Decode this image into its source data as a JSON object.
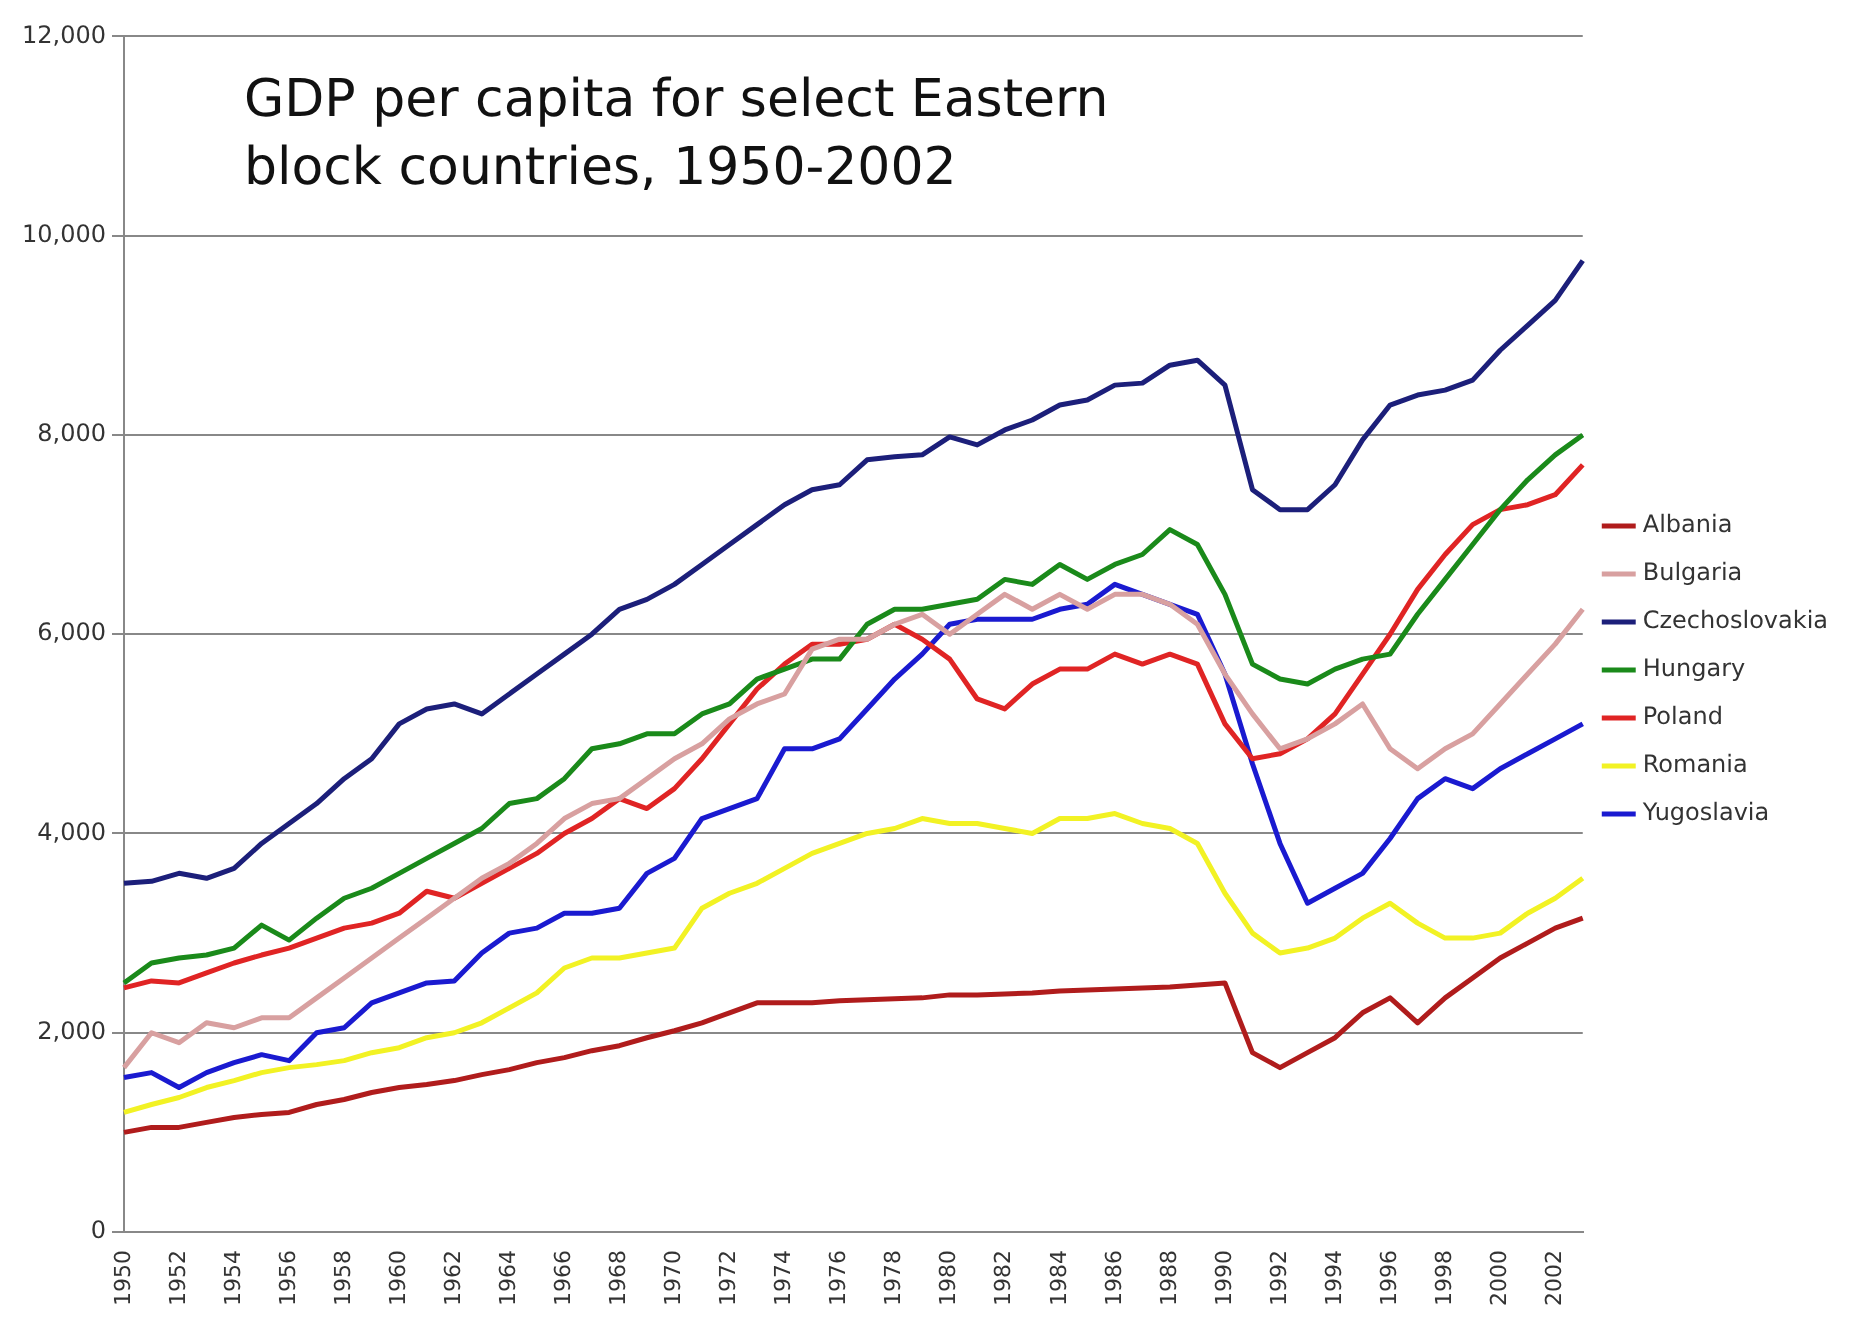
{
  "chart_data": {
    "type": "line",
    "title": "GDP per capita for select Eastern block countries, 1950-2002",
    "categories": [
      "1950",
      null,
      "1952",
      null,
      "1954",
      null,
      "1956",
      null,
      "1958",
      null,
      "1960",
      null,
      "1962",
      null,
      "1964",
      null,
      "1966",
      null,
      "1968",
      null,
      "1970",
      null,
      "1972",
      null,
      "1974",
      null,
      "1976",
      null,
      "1978",
      null,
      "1980",
      null,
      "1982",
      null,
      "1984",
      null,
      "1986",
      null,
      "1988",
      null,
      "1990",
      null,
      "1992",
      null,
      "1994",
      null,
      "1996",
      null,
      "1998",
      null,
      "2000",
      null,
      "2002",
      null
    ],
    "ylim": [
      0,
      12000
    ],
    "yticks": [
      0,
      {
        "value": 2000,
        "label": "2,000"
      },
      {
        "value": 4000,
        "label": "4,000"
      },
      {
        "value": 6000,
        "label": "6,000"
      },
      {
        "value": 8000,
        "label": "8,000"
      },
      {
        "value": 10000,
        "label": "10,000"
      },
      {
        "value": 12000,
        "label": "12,000"
      }
    ],
    "grid": "y",
    "legend": "right",
    "marker": "none",
    "line_style": "solid",
    "series": [
      {
        "name": "Albania",
        "color": "#b01c1c",
        "values": [
          1000,
          1050,
          1050,
          1100,
          1150,
          1180,
          1200,
          1280,
          1330,
          1400,
          1450,
          1480,
          1520,
          1580,
          1630,
          1700,
          1750,
          1820,
          1870,
          1950,
          2020,
          2100,
          2200,
          2300,
          2300,
          2300,
          2320,
          2330,
          2340,
          2350,
          2380,
          2380,
          2390,
          2400,
          2420,
          2430,
          2440,
          2450,
          2460,
          2480,
          2500,
          1800,
          1650,
          1800,
          1950,
          2200,
          2350,
          2100,
          2350,
          2550,
          2750,
          2900,
          3050,
          3150
        ]
      },
      {
        "name": "Bulgaria",
        "color": "#d8a0a0",
        "values": [
          1650,
          2000,
          1900,
          2100,
          2050,
          2150,
          2150,
          2350,
          2550,
          2750,
          2950,
          3150,
          3350,
          3550,
          3700,
          3900,
          4150,
          4300,
          4350,
          4550,
          4750,
          4900,
          5150,
          5300,
          5400,
          5850,
          5950,
          5950,
          6100,
          6200,
          6000,
          6200,
          6400,
          6250,
          6400,
          6250,
          6400,
          6400,
          6300,
          6100,
          5600,
          5200,
          4850,
          4950,
          5100,
          5300,
          4850,
          4650,
          4850,
          5000,
          5300,
          5600,
          5900,
          6250
        ]
      },
      {
        "name": "Czechoslovakia",
        "color": "#1c1f7a",
        "values": [
          3500,
          3520,
          3600,
          3550,
          3650,
          3900,
          4100,
          4300,
          4550,
          4750,
          5100,
          5250,
          5300,
          5200,
          5400,
          5600,
          5800,
          6000,
          6250,
          6350,
          6500,
          6700,
          6900,
          7100,
          7300,
          7450,
          7500,
          7750,
          7780,
          7800,
          7980,
          7900,
          8050,
          8150,
          8300,
          8350,
          8500,
          8520,
          8700,
          8750,
          8500,
          7450,
          7250,
          7250,
          7500,
          7950,
          8300,
          8400,
          8450,
          8550,
          8850,
          9100,
          9350,
          9750
        ]
      },
      {
        "name": "Hungary",
        "color": "#1a8a1a",
        "values": [
          2500,
          2700,
          2750,
          2780,
          2850,
          3080,
          2930,
          3150,
          3350,
          3450,
          3600,
          3750,
          3900,
          4050,
          4300,
          4350,
          4550,
          4850,
          4900,
          5000,
          5000,
          5200,
          5300,
          5550,
          5650,
          5750,
          5750,
          6100,
          6250,
          6250,
          6300,
          6350,
          6550,
          6500,
          6700,
          6550,
          6700,
          6800,
          7050,
          6900,
          6400,
          5700,
          5550,
          5500,
          5650,
          5750,
          5800,
          6200,
          6550,
          6900,
          7250,
          7550,
          7800,
          8000
        ]
      },
      {
        "name": "Poland",
        "color": "#e02424",
        "values": [
          2450,
          2520,
          2500,
          2600,
          2700,
          2780,
          2850,
          2950,
          3050,
          3100,
          3200,
          3420,
          3350,
          3500,
          3650,
          3800,
          4000,
          4150,
          4350,
          4250,
          4450,
          4750,
          5100,
          5450,
          5700,
          5900,
          5900,
          5950,
          6100,
          5950,
          5750,
          5350,
          5250,
          5500,
          5650,
          5650,
          5800,
          5700,
          5800,
          5700,
          5100,
          4750,
          4800,
          4950,
          5200,
          5600,
          6000,
          6450,
          6800,
          7100,
          7250,
          7300,
          7400,
          7700
        ]
      },
      {
        "name": "Romania",
        "color": "#f2f224",
        "values": [
          1200,
          1280,
          1350,
          1450,
          1520,
          1600,
          1650,
          1680,
          1720,
          1800,
          1850,
          1950,
          2000,
          2100,
          2250,
          2400,
          2650,
          2750,
          2750,
          2800,
          2850,
          3250,
          3400,
          3500,
          3650,
          3800,
          3900,
          4000,
          4050,
          4150,
          4100,
          4100,
          4050,
          4000,
          4150,
          4150,
          4200,
          4100,
          4050,
          3900,
          3400,
          3000,
          2800,
          2850,
          2950,
          3150,
          3300,
          3100,
          2950,
          2950,
          3000,
          3200,
          3350,
          3550
        ]
      },
      {
        "name": "Yugoslavia",
        "color": "#1a1ad0",
        "values": [
          1550,
          1600,
          1450,
          1600,
          1700,
          1780,
          1720,
          2000,
          2050,
          2300,
          2400,
          2500,
          2520,
          2800,
          3000,
          3050,
          3200,
          3200,
          3250,
          3600,
          3750,
          4150,
          4250,
          4350,
          4850,
          4850,
          4950,
          5250,
          5550,
          5800,
          6100,
          6150,
          6150,
          6150,
          6250,
          6300,
          6500,
          6400,
          6300,
          6200,
          5600,
          4700,
          3900,
          3300,
          3450,
          3600,
          3950,
          4350,
          4550,
          4450,
          4650,
          4800,
          4950,
          5100
        ]
      }
    ]
  }
}
